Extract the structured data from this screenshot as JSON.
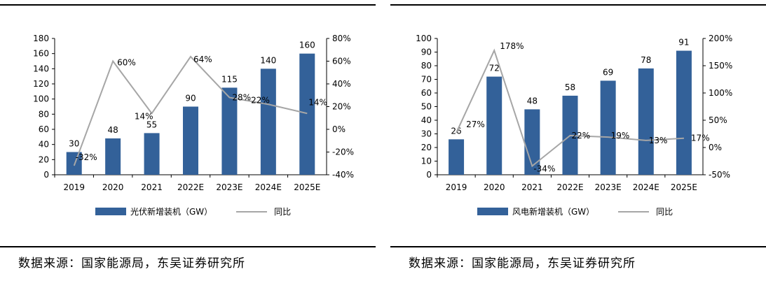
{
  "colors": {
    "bar": "#336199",
    "line": "#a6a6a6",
    "text": "#000000"
  },
  "chart_data": [
    {
      "type": "bar",
      "title": "",
      "categories": [
        "2019",
        "2020",
        "2021",
        "2022E",
        "2023E",
        "2024E",
        "2025E"
      ],
      "series": [
        {
          "name": "光伏新增装机（GW）",
          "kind": "bar",
          "axis": "left",
          "values": [
            30,
            48,
            55,
            90,
            115,
            140,
            160
          ],
          "labels": [
            "30",
            "48",
            "55",
            "90",
            "115",
            "140",
            "160"
          ]
        },
        {
          "name": "同比",
          "kind": "line",
          "axis": "right",
          "values": [
            -32,
            60,
            14,
            64,
            28,
            22,
            14
          ],
          "labels": [
            "-32%",
            "60%",
            "14%",
            "64%",
            "28%",
            "22%",
            "14%"
          ]
        }
      ],
      "ylim": [
        0,
        180
      ],
      "yticks": [
        "0",
        "20",
        "40",
        "60",
        "80",
        "100",
        "120",
        "140",
        "160",
        "180"
      ],
      "y2lim": [
        -40,
        80
      ],
      "y2ticks": [
        "-40%",
        "-20%",
        "0%",
        "20%",
        "40%",
        "60%",
        "80%"
      ],
      "legend": "bottom",
      "grid": false,
      "source": "数据来源：国家能源局，东吴证券研究所"
    },
    {
      "type": "bar",
      "title": "",
      "categories": [
        "2019",
        "2020",
        "2021",
        "2022E",
        "2023E",
        "2024E",
        "2025E"
      ],
      "series": [
        {
          "name": "风电新增装机（GW）",
          "kind": "bar",
          "axis": "left",
          "values": [
            26,
            72,
            48,
            58,
            69,
            78,
            91
          ],
          "labels": [
            "26",
            "72",
            "48",
            "58",
            "69",
            "78",
            "91"
          ]
        },
        {
          "name": "同比",
          "kind": "line",
          "axis": "right",
          "values": [
            27,
            178,
            -34,
            22,
            19,
            13,
            17
          ],
          "labels": [
            "27%",
            "178%",
            "-34%",
            "22%",
            "19%",
            "13%",
            "17%"
          ]
        }
      ],
      "ylim": [
        0,
        100
      ],
      "yticks": [
        "0",
        "10",
        "20",
        "30",
        "40",
        "50",
        "60",
        "70",
        "80",
        "90",
        "100"
      ],
      "y2lim": [
        -50,
        200
      ],
      "y2ticks": [
        "-50%",
        "0%",
        "50%",
        "100%",
        "150%",
        "200%"
      ],
      "legend": "bottom",
      "grid": false,
      "source": "数据来源：国家能源局，东吴证券研究所"
    }
  ]
}
